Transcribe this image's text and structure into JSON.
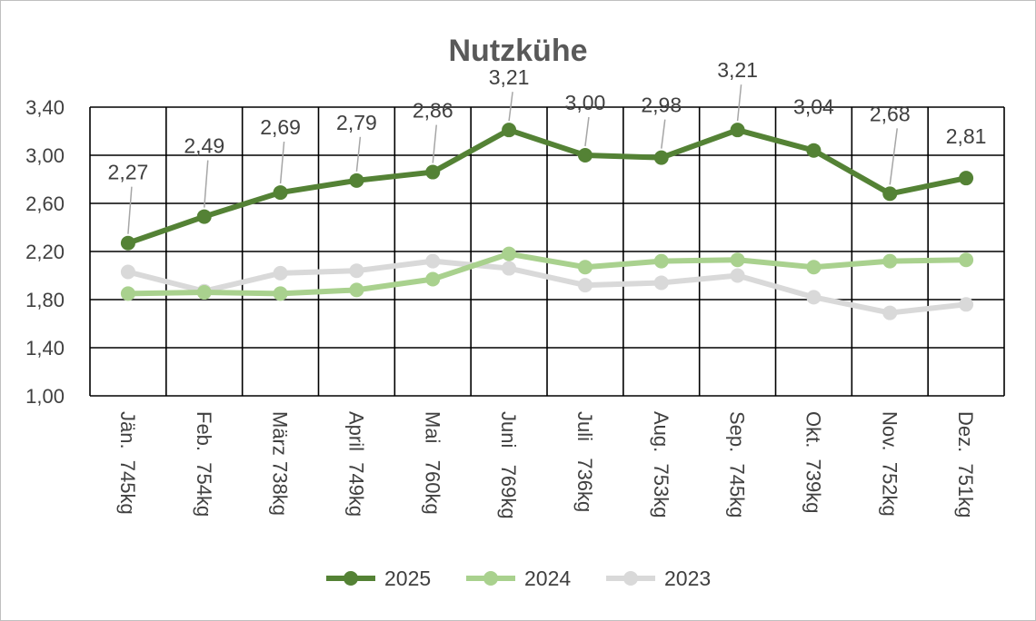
{
  "chart_data": {
    "type": "line",
    "title": "Nutzkühe",
    "xlabel": "",
    "ylabel": "",
    "ylim": [
      1.0,
      3.4
    ],
    "yticks": [
      "1,00",
      "1,40",
      "1,80",
      "2,20",
      "2,60",
      "3,00",
      "3,40"
    ],
    "yticks_values": [
      1.0,
      1.4,
      1.8,
      2.2,
      2.6,
      3.0,
      3.4
    ],
    "grid": true,
    "legend_position": "bottom",
    "categories": [
      "Jän.  745kg",
      "Feb.  754kg",
      "März 738kg",
      "April  749kg",
      "Mai   760kg",
      "Juni   769kg",
      "Juli   736kg",
      "Aug.  753kg",
      "Sep.  745kg",
      "Okt.  739kg",
      "Nov.  752kg",
      "Dez.  751kg"
    ],
    "series": [
      {
        "name": "2025",
        "color": "#548235",
        "values": [
          2.27,
          2.49,
          2.69,
          2.79,
          2.86,
          3.21,
          3.0,
          2.98,
          3.21,
          3.04,
          2.68,
          2.81
        ],
        "labels": [
          "2,27",
          "2,49",
          "2,69",
          "2,79",
          "2,86",
          "3,21",
          "3,00",
          "2,98",
          "3,21",
          "3,04",
          "2,68",
          "2,81"
        ]
      },
      {
        "name": "2024",
        "color": "#a9d18e",
        "values": [
          1.85,
          1.86,
          1.85,
          1.88,
          1.97,
          2.18,
          2.07,
          2.12,
          2.13,
          2.07,
          2.12,
          2.13
        ]
      },
      {
        "name": "2023",
        "color": "#d9d9d9",
        "values": [
          2.03,
          1.87,
          2.02,
          2.04,
          2.12,
          2.06,
          1.92,
          1.94,
          2.0,
          1.82,
          1.69,
          1.76
        ]
      }
    ]
  }
}
